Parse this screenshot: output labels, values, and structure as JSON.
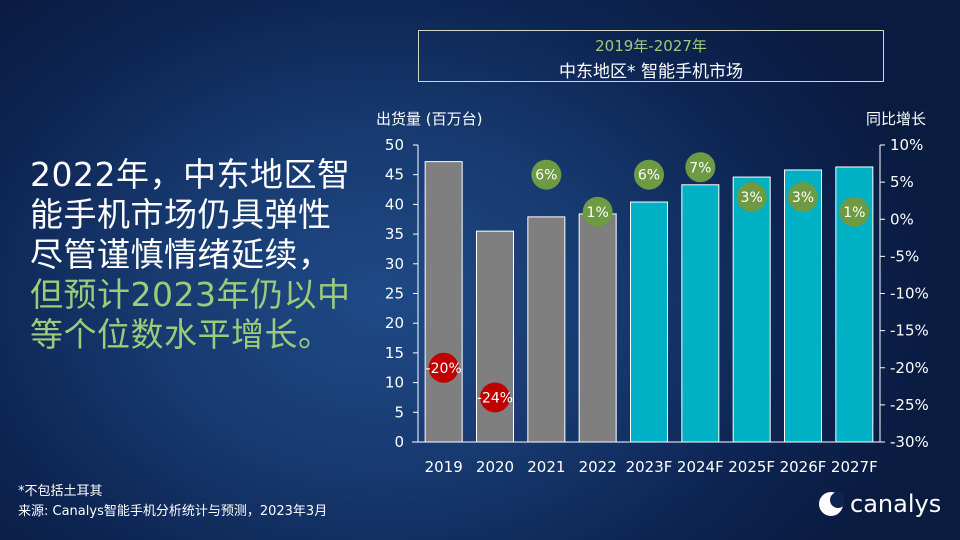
{
  "headline": {
    "lines": [
      "2022年，中东地区智",
      "能手机市场仍具弹性",
      "尽管谨慎情绪延续，"
    ],
    "green_lines": [
      "但预计2023年仍以中",
      "等个位数水平增长。"
    ]
  },
  "footer": {
    "note": "*不包括土耳其",
    "source": "来源: Canalys智能手机分析统计与预测，2023年3月"
  },
  "logo": {
    "text": "canalys"
  },
  "colors": {
    "actual": "#7f7f7f",
    "forecast": "#00b0c4",
    "negative": "#c00000",
    "positive": "#6e9a44",
    "accent_green": "#9ccc7a"
  },
  "chart_data": {
    "type": "bar",
    "title": "2019年-2027年",
    "subtitle": "中东地区* 智能手机市场",
    "ylabel": "出货量 (百万台)",
    "y2label": "同比增长",
    "categories": [
      "2019",
      "2020",
      "2021",
      "2022",
      "2023F",
      "2024F",
      "2025F",
      "2026F",
      "2027F"
    ],
    "values": [
      47.2,
      35.5,
      37.9,
      38.4,
      40.4,
      43.3,
      44.6,
      45.8,
      46.3
    ],
    "forecast": [
      false,
      false,
      false,
      false,
      true,
      true,
      true,
      true,
      true
    ],
    "growth": [
      -20,
      -24,
      6,
      1,
      6,
      7,
      3,
      3,
      1
    ],
    "growth_labels": [
      "-20%",
      "-24%",
      "6%",
      "1%",
      "6%",
      "7%",
      "3%",
      "3%",
      "1%"
    ],
    "ylim": [
      0,
      50
    ],
    "yticks": [
      "0",
      "5",
      "10",
      "15",
      "20",
      "25",
      "30",
      "35",
      "40",
      "45",
      "50"
    ],
    "y2lim": [
      -30,
      10
    ],
    "y2ticks": [
      "-30%",
      "-25%",
      "-20%",
      "-15%",
      "-10%",
      "-5%",
      "0%",
      "5%",
      "10%"
    ],
    "grid": false
  }
}
